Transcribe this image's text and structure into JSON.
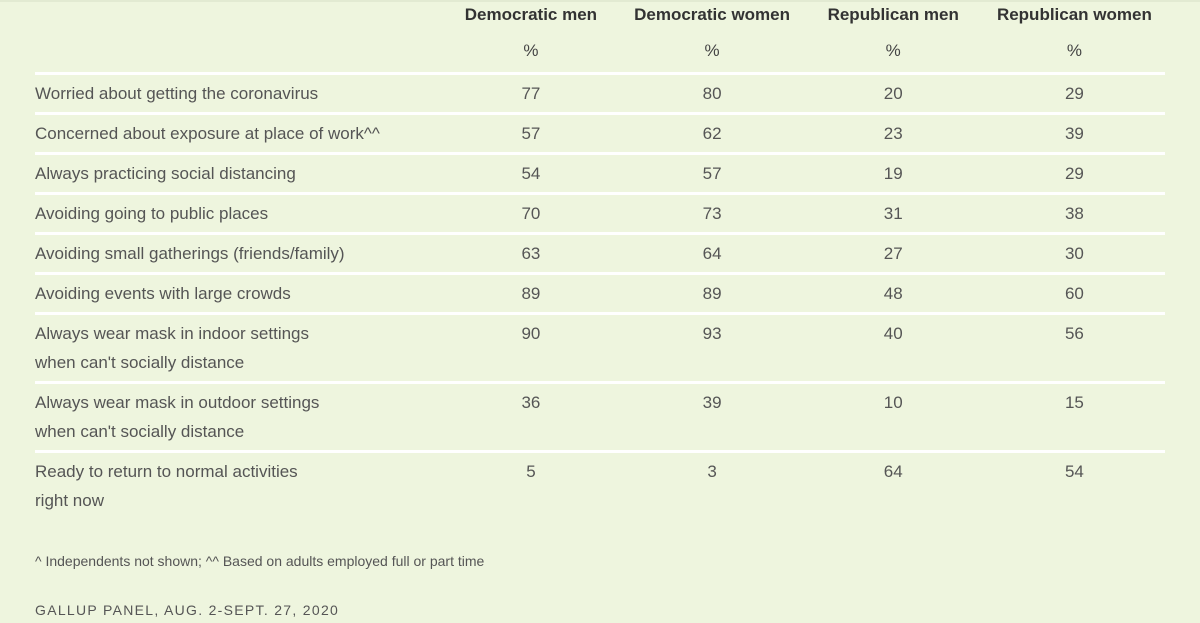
{
  "chart_data": {
    "type": "table",
    "columns": [
      "Democratic men",
      "Democratic women",
      "Republican men",
      "Republican women"
    ],
    "unit_row": [
      "%",
      "%",
      "%",
      "%"
    ],
    "rows": [
      {
        "label": "Worried about getting the coronavirus",
        "label2": "",
        "values": [
          "77",
          "80",
          "20",
          "29"
        ]
      },
      {
        "label": "Concerned about exposure at place of work^^",
        "label2": "",
        "values": [
          "57",
          "62",
          "23",
          "39"
        ]
      },
      {
        "label": "Always practicing social distancing",
        "label2": "",
        "values": [
          "54",
          "57",
          "19",
          "29"
        ]
      },
      {
        "label": "Avoiding going to public places",
        "label2": "",
        "values": [
          "70",
          "73",
          "31",
          "38"
        ]
      },
      {
        "label": "Avoiding small gatherings (friends/family)",
        "label2": "",
        "values": [
          "63",
          "64",
          "27",
          "30"
        ]
      },
      {
        "label": "Avoiding events with large crowds",
        "label2": "",
        "values": [
          "89",
          "89",
          "48",
          "60"
        ]
      },
      {
        "label": "Always wear mask in indoor settings",
        "label2": "when can't socially distance",
        "values": [
          "90",
          "93",
          "40",
          "56"
        ]
      },
      {
        "label": "Always wear mask in outdoor settings",
        "label2": "when can't socially distance",
        "values": [
          "36",
          "39",
          "10",
          "15"
        ]
      },
      {
        "label": "Ready to return to normal activities",
        "label2": "right now",
        "values": [
          "5",
          "3",
          "64",
          "54"
        ]
      }
    ]
  },
  "footnote": "^ Independents not shown; ^^ Based on adults employed full or part time",
  "source": "GALLUP PANEL, AUG. 2-SEPT. 27, 2020",
  "colors": {
    "background": "#eef5de",
    "divider": "#ffffff"
  }
}
